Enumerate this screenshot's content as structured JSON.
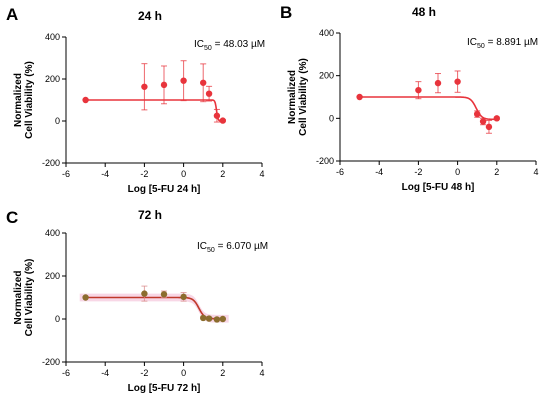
{
  "chart_data": [
    {
      "panel": "A",
      "title": "24 h",
      "type": "scatter",
      "xlabel": "Log [5-FU 24 h]",
      "ylabel": [
        "Normalized",
        "Cell Viability (%)"
      ],
      "xlim": [
        -6,
        4
      ],
      "ylim": [
        -200,
        400
      ],
      "xticks": [
        "-6",
        "-4",
        "-2",
        "0",
        "2",
        "4"
      ],
      "yticks": [
        "-200",
        "0",
        "200",
        "400"
      ],
      "annotation": {
        "prefix": "IC",
        "sub": "50",
        "suffix": " = 48.03 µM"
      },
      "series": [
        {
          "x": [
            -5,
            -2,
            -1,
            0,
            1,
            1.3,
            1.7,
            2.0
          ],
          "y": [
            100,
            163,
            172,
            192,
            182,
            130,
            25,
            2
          ],
          "err": [
            0,
            110,
            90,
            95,
            90,
            35,
            30,
            5
          ],
          "fit": {
            "top": 100,
            "bottom": 0,
            "logIC50": 1.68,
            "hill": 12
          }
        }
      ],
      "colors": {
        "points": "#e8343c",
        "fit": "#e8343c"
      },
      "shaded_band": false
    },
    {
      "panel": "B",
      "title": "48 h",
      "type": "scatter",
      "xlabel": "Log [5-FU 48 h]",
      "ylabel": [
        "Normalized",
        "Cell Viability (%)"
      ],
      "xlim": [
        -6,
        4
      ],
      "ylim": [
        -200,
        400
      ],
      "xticks": [
        "-6",
        "-4",
        "-2",
        "0",
        "2",
        "4"
      ],
      "yticks": [
        "-200",
        "0",
        "200",
        "400"
      ],
      "annotation": {
        "prefix": "IC",
        "sub": "50",
        "suffix": " = 8.891 µM"
      },
      "series": [
        {
          "x": [
            -5,
            -2,
            -1,
            0,
            1,
            1.3,
            1.6,
            2.0
          ],
          "y": [
            100,
            132,
            165,
            172,
            20,
            -15,
            -40,
            0
          ],
          "err": [
            0,
            40,
            45,
            50,
            15,
            15,
            30,
            5
          ],
          "fit": {
            "top": 100,
            "bottom": -5,
            "logIC50": 0.95,
            "hill": 3
          }
        }
      ],
      "colors": {
        "points": "#e8343c",
        "fit": "#e8343c"
      },
      "shaded_band": false
    },
    {
      "panel": "C",
      "title": "72 h",
      "type": "scatter",
      "xlabel": "Log [5-FU 72 h]",
      "ylabel": [
        "Normalized",
        "Cell Viability (%)"
      ],
      "xlim": [
        -6,
        4
      ],
      "ylim": [
        -200,
        400
      ],
      "xticks": [
        "-6",
        "-4",
        "-2",
        "0",
        "2",
        "4"
      ],
      "yticks": [
        "-200",
        "0",
        "200",
        "400"
      ],
      "annotation": {
        "prefix": "IC",
        "sub": "50",
        "suffix": " = 6.070 µM"
      },
      "series": [
        {
          "x": [
            -5,
            -2,
            -1,
            0,
            1,
            1.3,
            1.7,
            2.0
          ],
          "y": [
            100,
            118,
            115,
            103,
            5,
            2,
            -2,
            0
          ],
          "err": [
            0,
            35,
            15,
            20,
            5,
            5,
            5,
            5
          ],
          "fit": {
            "top": 100,
            "bottom": 1,
            "logIC50": 0.78,
            "hill": 3
          }
        }
      ],
      "colors": {
        "points": "#8b6d2e",
        "fit": "#c0392b",
        "band": "#f7d3e3",
        "errorbars": "#d98a8a"
      },
      "shaded_band": true
    }
  ]
}
